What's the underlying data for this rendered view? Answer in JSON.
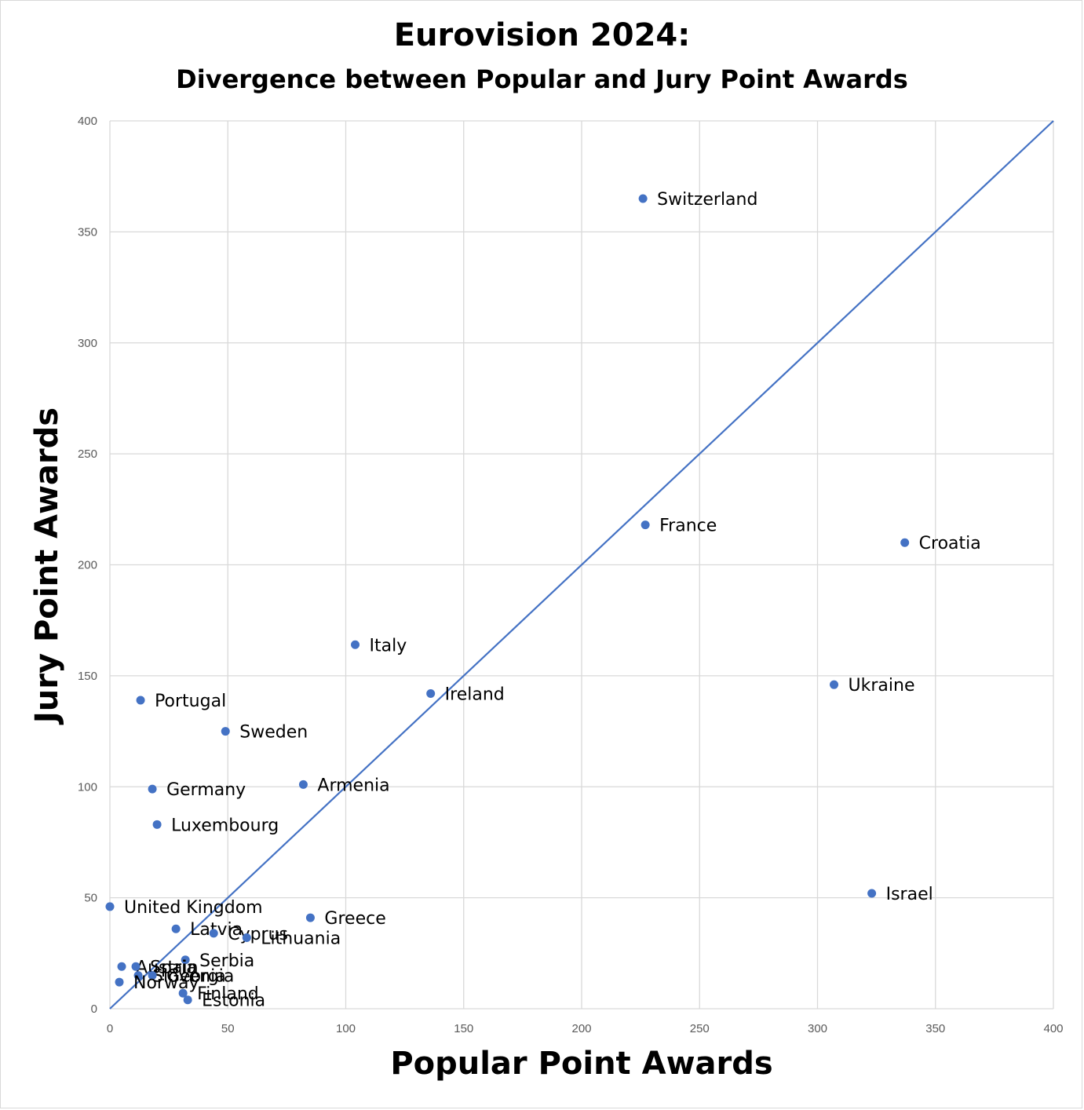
{
  "chart_data": {
    "type": "scatter",
    "title": "Eurovision 2024:",
    "subtitle": "Divergence between Popular and Jury Point Awards",
    "xlabel": "Popular Point Awards",
    "ylabel": "Jury Point Awards",
    "xlim": [
      0,
      400
    ],
    "ylim": [
      0,
      400
    ],
    "xticks": [
      0,
      50,
      100,
      150,
      200,
      250,
      300,
      350,
      400
    ],
    "yticks": [
      0,
      50,
      100,
      150,
      200,
      250,
      300,
      350,
      400
    ],
    "grid": true,
    "point_color": "#4472C4",
    "line_color": "#4472C4",
    "reference_line": {
      "x": [
        0,
        400
      ],
      "y": [
        0,
        400
      ]
    },
    "points": [
      {
        "label": "Switzerland",
        "x": 226,
        "y": 365
      },
      {
        "label": "France",
        "x": 227,
        "y": 218
      },
      {
        "label": "Croatia",
        "x": 337,
        "y": 210
      },
      {
        "label": "Italy",
        "x": 104,
        "y": 164
      },
      {
        "label": "Ukraine",
        "x": 307,
        "y": 146
      },
      {
        "label": "Ireland",
        "x": 136,
        "y": 142
      },
      {
        "label": "Portugal",
        "x": 13,
        "y": 139
      },
      {
        "label": "Sweden",
        "x": 49,
        "y": 125
      },
      {
        "label": "Armenia",
        "x": 82,
        "y": 101
      },
      {
        "label": "Germany",
        "x": 18,
        "y": 99
      },
      {
        "label": "Luxembourg",
        "x": 20,
        "y": 83
      },
      {
        "label": "Israel",
        "x": 323,
        "y": 52
      },
      {
        "label": "United Kingdom",
        "x": 0,
        "y": 46
      },
      {
        "label": "Greece",
        "x": 85,
        "y": 41
      },
      {
        "label": "Latvia",
        "x": 28,
        "y": 36
      },
      {
        "label": "Cyprus",
        "x": 44,
        "y": 34
      },
      {
        "label": "Lithuania",
        "x": 58,
        "y": 32
      },
      {
        "label": "Serbia",
        "x": 32,
        "y": 22
      },
      {
        "label": "Austria",
        "x": 5,
        "y": 19
      },
      {
        "label": "Spain",
        "x": 11,
        "y": 19
      },
      {
        "label": "Slovenia",
        "x": 12,
        "y": 15
      },
      {
        "label": "Georgia",
        "x": 18,
        "y": 15
      },
      {
        "label": "Norway",
        "x": 4,
        "y": 12
      },
      {
        "label": "Finland",
        "x": 31,
        "y": 7
      },
      {
        "label": "Estonia",
        "x": 33,
        "y": 4
      }
    ]
  }
}
